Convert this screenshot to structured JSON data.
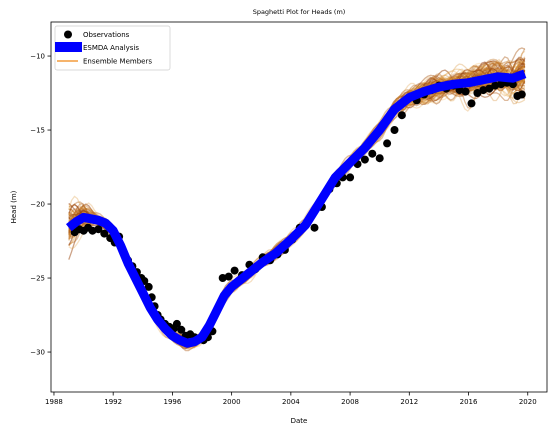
{
  "chart_data": {
    "type": "line",
    "title": "Spaghetti Plot for Heads (m)",
    "xlabel": "Date",
    "ylabel": "Head (m)",
    "xlim": [
      1987.8,
      2021.3
    ],
    "ylim": [
      -32.7,
      -7.7
    ],
    "x_ticks": [
      1988,
      1992,
      1996,
      2000,
      2004,
      2008,
      2012,
      2016,
      2020
    ],
    "y_ticks": [
      -10,
      -15,
      -20,
      -25,
      -30
    ],
    "y_tick_labels": [
      "−10",
      "−15",
      "−20",
      "−25",
      "−30"
    ],
    "legend_position": "upper-left",
    "colors": {
      "observations": "#000000",
      "esmda": "#0000ff",
      "ensemble_light": "#f5b342",
      "ensemble_dark": "#8b3a0f"
    },
    "legend": [
      {
        "label": "Observations",
        "kind": "marker"
      },
      {
        "label": "ESMDA Analysis",
        "kind": "thick-line"
      },
      {
        "label": "Ensemble Members",
        "kind": "thin-line"
      }
    ],
    "series": [
      {
        "name": "ESMDA Analysis",
        "x": [
          1989.0,
          1989.5,
          1990.0,
          1990.5,
          1991.0,
          1991.5,
          1992.0,
          1992.5,
          1993.0,
          1993.5,
          1994.0,
          1994.5,
          1995.0,
          1995.5,
          1996.0,
          1996.5,
          1997.0,
          1997.5,
          1998.0,
          1998.5,
          1999.0,
          1999.5,
          2000.0,
          2001.0,
          2002.0,
          2003.0,
          2004.0,
          2005.0,
          2006.0,
          2007.0,
          2008.0,
          2009.0,
          2010.0,
          2011.0,
          2012.0,
          2013.0,
          2014.0,
          2015.0,
          2016.0,
          2017.0,
          2018.0,
          2019.0,
          2019.8
        ],
        "y": [
          -21.6,
          -21.2,
          -20.9,
          -21.0,
          -21.1,
          -21.3,
          -21.8,
          -22.8,
          -24.0,
          -25.0,
          -26.0,
          -27.0,
          -27.8,
          -28.4,
          -28.9,
          -29.2,
          -29.4,
          -29.3,
          -29.0,
          -28.2,
          -27.2,
          -26.2,
          -25.6,
          -24.8,
          -24.0,
          -23.3,
          -22.4,
          -21.4,
          -19.8,
          -18.2,
          -17.2,
          -16.2,
          -15.0,
          -13.6,
          -12.8,
          -12.4,
          -12.1,
          -11.9,
          -11.8,
          -11.6,
          -11.4,
          -11.5,
          -11.2
        ]
      },
      {
        "name": "Observations",
        "x": [
          1989.4,
          1989.7,
          1990.0,
          1990.3,
          1990.6,
          1991.0,
          1991.4,
          1991.8,
          1992.1,
          1992.4,
          1992.6,
          1992.8,
          1993.0,
          1993.3,
          1993.6,
          1993.9,
          1994.1,
          1994.4,
          1994.6,
          1994.8,
          1995.0,
          1995.2,
          1995.5,
          1995.8,
          1996.1,
          1996.3,
          1996.6,
          1996.9,
          1997.2,
          1997.5,
          1997.8,
          1998.1,
          1998.4,
          1998.7,
          1999.4,
          1999.8,
          2000.2,
          2000.7,
          2001.2,
          2001.6,
          2002.1,
          2002.6,
          2003.1,
          2003.6,
          2004.1,
          2004.6,
          2005.1,
          2005.6,
          2006.1,
          2006.6,
          2007.1,
          2007.5,
          2008.0,
          2008.5,
          2009.0,
          2009.5,
          2010.0,
          2010.5,
          2011.0,
          2011.5,
          2012.0,
          2012.5,
          2013.0,
          2013.5,
          2014.0,
          2014.5,
          2015.0,
          2015.4,
          2015.8,
          2016.2,
          2016.6,
          2017.0,
          2017.4,
          2017.8,
          2018.2,
          2018.6,
          2019.0,
          2019.3,
          2019.6
        ],
        "y": [
          -21.9,
          -21.7,
          -21.8,
          -21.6,
          -21.8,
          -21.7,
          -22.0,
          -22.3,
          -22.6,
          -22.2,
          -23.0,
          -23.5,
          -23.8,
          -24.2,
          -24.6,
          -25.0,
          -25.2,
          -25.6,
          -26.3,
          -26.9,
          -27.5,
          -27.8,
          -28.1,
          -28.3,
          -28.4,
          -28.1,
          -28.5,
          -28.9,
          -28.8,
          -29.0,
          -29.1,
          -29.2,
          -29.0,
          -28.6,
          -25.0,
          -24.9,
          -24.5,
          -24.8,
          -24.1,
          -24.4,
          -23.6,
          -23.8,
          -23.4,
          -23.1,
          -22.4,
          -21.6,
          -21.3,
          -21.6,
          -20.2,
          -19.0,
          -18.6,
          -18.2,
          -18.2,
          -17.3,
          -17.0,
          -16.6,
          -16.9,
          -15.9,
          -15.0,
          -14.0,
          -12.8,
          -13.0,
          -12.6,
          -12.3,
          -12.0,
          -12.2,
          -12.0,
          -12.3,
          -12.4,
          -13.2,
          -12.5,
          -12.3,
          -12.2,
          -12.0,
          -11.9,
          -11.8,
          -11.9,
          -12.7,
          -12.6
        ]
      }
    ]
  }
}
